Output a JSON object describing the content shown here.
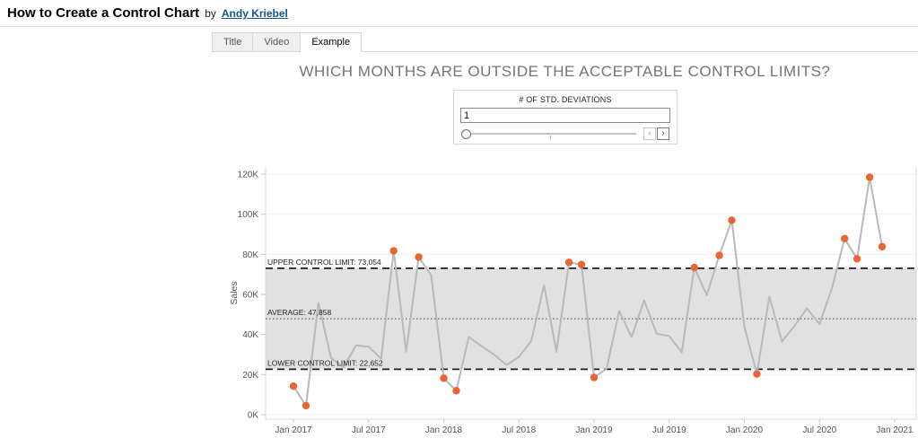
{
  "header": {
    "title": "How to Create a Control Chart",
    "byline": "by",
    "author": "Andy Kriebel"
  },
  "tabs": [
    {
      "label": "Title"
    },
    {
      "label": "Video"
    },
    {
      "label": "Example"
    }
  ],
  "parameter": {
    "label": "# OF STD. DEVIATIONS",
    "value": "1",
    "decrement": "‹",
    "increment": "›"
  },
  "chart_data": {
    "type": "line",
    "title": "WHICH MONTHS ARE OUTSIDE THE ACCEPTABLE CONTROL LIMITS?",
    "ylabel": "Sales",
    "x": [
      "Jan 2017",
      "Feb 2017",
      "Mar 2017",
      "Apr 2017",
      "May 2017",
      "Jun 2017",
      "Jul 2017",
      "Aug 2017",
      "Sep 2017",
      "Oct 2017",
      "Nov 2017",
      "Dec 2017",
      "Jan 2018",
      "Feb 2018",
      "Mar 2018",
      "Apr 2018",
      "May 2018",
      "Jun 2018",
      "Jul 2018",
      "Aug 2018",
      "Sep 2018",
      "Oct 2018",
      "Nov 2018",
      "Dec 2018",
      "Jan 2019",
      "Feb 2019",
      "Mar 2019",
      "Apr 2019",
      "May 2019",
      "Jun 2019",
      "Jul 2019",
      "Aug 2019",
      "Sep 2019",
      "Oct 2019",
      "Nov 2019",
      "Dec 2019",
      "Jan 2020",
      "Feb 2020",
      "Mar 2020",
      "Apr 2020",
      "May 2020",
      "Jun 2020",
      "Jul 2020",
      "Aug 2020",
      "Sep 2020",
      "Oct 2020",
      "Nov 2020",
      "Dec 2020"
    ],
    "values": [
      14237,
      4520,
      55691,
      28295,
      23648,
      34595,
      33946,
      27909,
      81777,
      31453,
      78629,
      69545,
      18174,
      11951,
      38726,
      34195,
      30131,
      24797,
      28765,
      36898,
      64595,
      31404,
      75973,
      74920,
      18542,
      22979,
      51716,
      38750,
      56988,
      40344,
      39262,
      31115,
      73410,
      59687,
      79412,
      96999,
      43971,
      20301,
      58872,
      36522,
      44261,
      52982,
      45264,
      63121,
      87867,
      77777,
      118448,
      83829
    ],
    "x_tick_labels": [
      "Jan 2017",
      "Jul 2017",
      "Jan 2018",
      "Jul 2018",
      "Jan 2019",
      "Jul 2019",
      "Jan 2020",
      "Jul 2020",
      "Jan 2021"
    ],
    "x_tick_month_index": [
      0,
      6,
      12,
      18,
      24,
      30,
      36,
      42,
      48
    ],
    "y_ticks": [
      0,
      20000,
      40000,
      60000,
      80000,
      100000,
      120000
    ],
    "y_tick_labels": [
      "0K",
      "20K",
      "40K",
      "60K",
      "80K",
      "100K",
      "120K"
    ],
    "ylim": [
      0,
      125000
    ],
    "average": 47858,
    "upper_control_limit": 73054,
    "lower_control_limit": 22652,
    "labels": {
      "ucl": "UPPER CONTROL LIMIT: 73,054",
      "average": "AVERAGE: 47,858",
      "lcl": "LOWER CONTROL LIMIT: 22,652"
    },
    "colors": {
      "line": "#b9b9b9",
      "outlier": "#ec6434",
      "band": "#e1e1e1",
      "reference_line": "#1f1f1f",
      "average_line": "#4a4a4a"
    },
    "grid": true,
    "legend": "none"
  }
}
